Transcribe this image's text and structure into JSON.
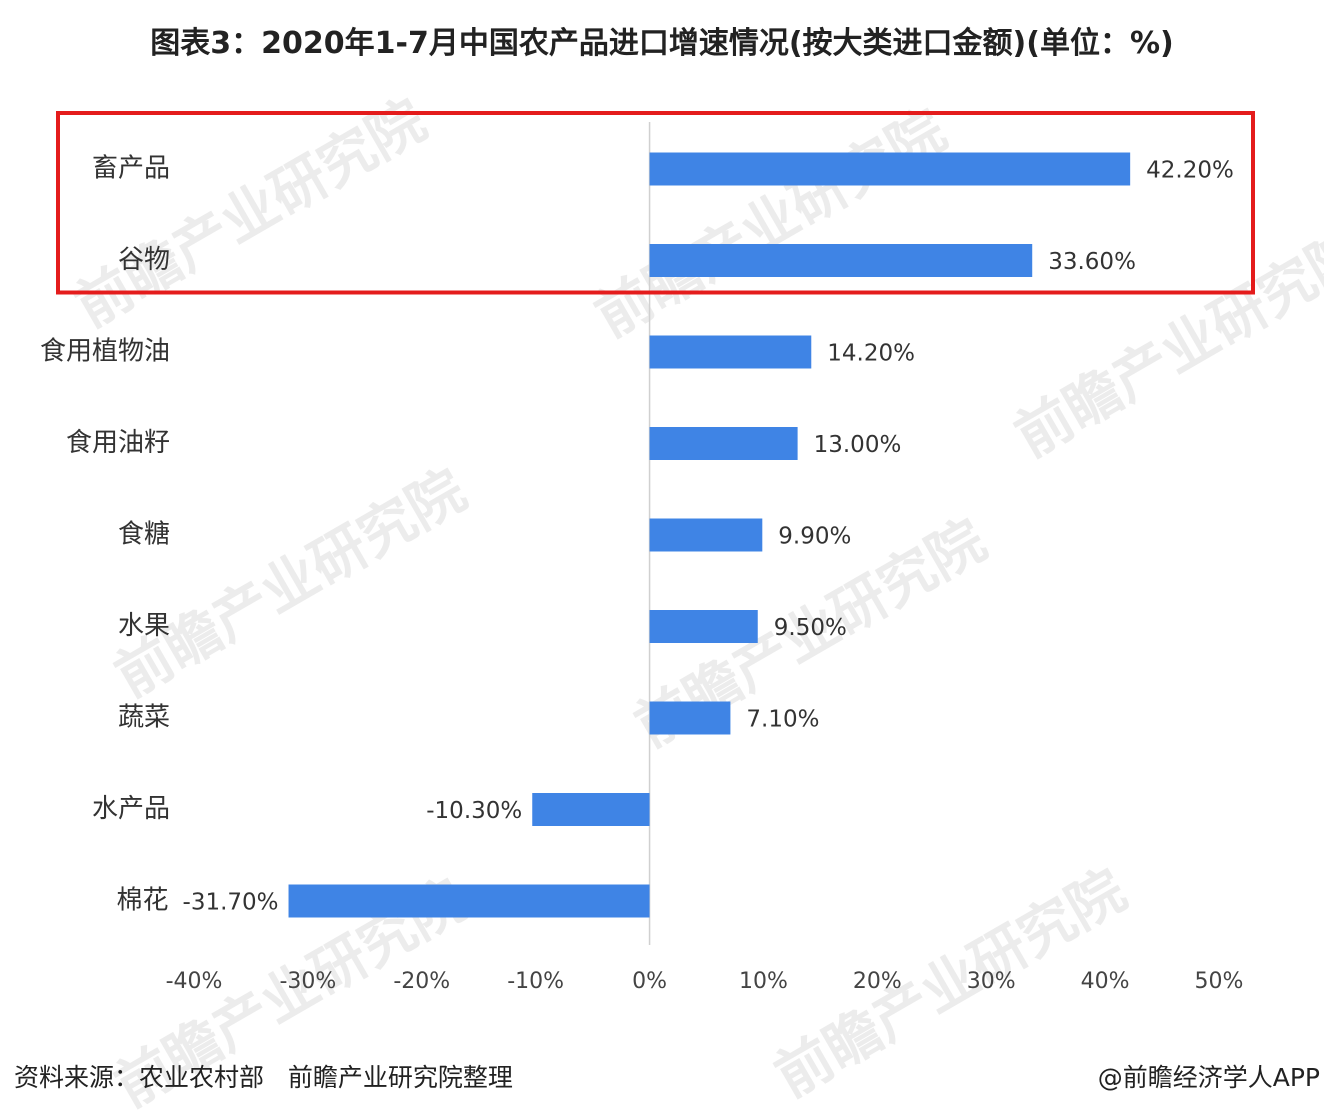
{
  "title": "图表3：2020年1-7月中国农产品进口增速情况(按大类进口金额)(单位：%)",
  "source": "资料来源：农业农村部   前瞻产业研究院整理",
  "credit": "@前瞻经济学人APP",
  "watermark": "前瞻产业研究院",
  "colors": {
    "bar": "#3f84e5",
    "highlight_box": "#e41c1c",
    "axis": "#d0d0d0"
  },
  "chart_data": {
    "type": "bar",
    "orientation": "horizontal",
    "categories": [
      "畜产品",
      "谷物",
      "食用植物油",
      "食用油籽",
      "食糖",
      "水果",
      "蔬菜",
      "水产品",
      "棉花"
    ],
    "values": [
      42.2,
      33.6,
      14.2,
      13.0,
      9.9,
      9.5,
      7.1,
      -10.3,
      -31.7
    ],
    "value_labels": [
      "42.20%",
      "33.60%",
      "14.20%",
      "13.00%",
      "9.90%",
      "9.50%",
      "7.10%",
      "-10.30%",
      "-31.70%"
    ],
    "xlim": [
      -40,
      50
    ],
    "xticks": [
      -40,
      -30,
      -20,
      -10,
      0,
      10,
      20,
      30,
      40,
      50
    ],
    "xtick_labels": [
      "-40%",
      "-30%",
      "-20%",
      "-10%",
      "0%",
      "10%",
      "20%",
      "30%",
      "40%",
      "50%"
    ],
    "highlighted_categories": [
      "畜产品",
      "谷物"
    ],
    "grid": false,
    "legend": "none"
  }
}
